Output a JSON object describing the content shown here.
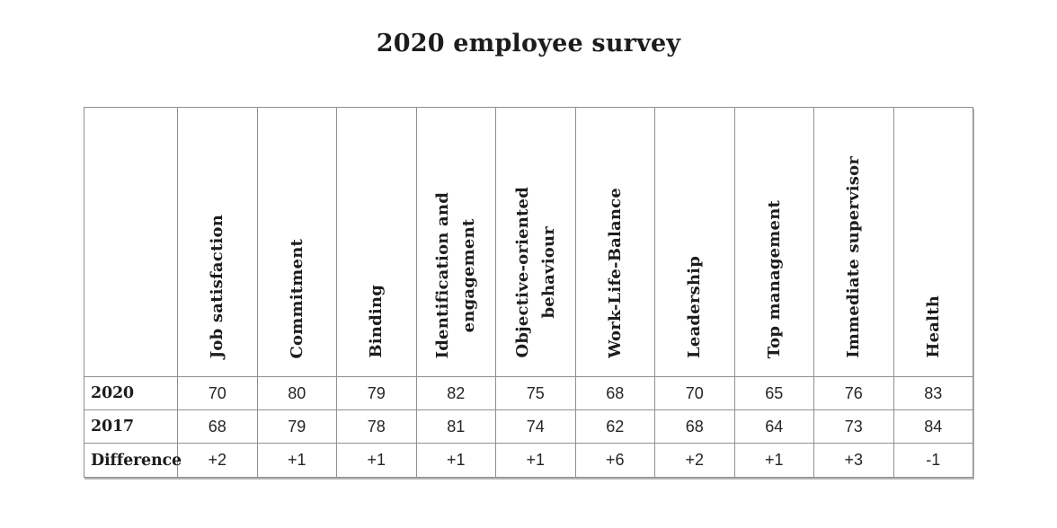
{
  "title": "2020 employee survey",
  "colors": {
    "background": "#ffffff",
    "grid_border": "#8f8f8f",
    "heading_text": "#1d1d1d",
    "value_text": "#262626"
  },
  "table": {
    "columns": [
      "Job satisfaction",
      "Commitment",
      "Binding",
      "Identification and\nengagement",
      "Objective-oriented\nbehaviour",
      "Work-Life-Balance",
      "Leadership",
      "Top management",
      "Immediate supervisor",
      "Health"
    ],
    "rows": [
      {
        "label": "2020",
        "values": [
          "70",
          "80",
          "79",
          "82",
          "75",
          "68",
          "70",
          "65",
          "76",
          "83"
        ]
      },
      {
        "label": "2017",
        "values": [
          "68",
          "79",
          "78",
          "81",
          "74",
          "62",
          "68",
          "64",
          "73",
          "84"
        ]
      },
      {
        "label": "Difference",
        "values": [
          "+2",
          "+1",
          "+1",
          "+1",
          "+1",
          "+6",
          "+2",
          "+1",
          "+3",
          "-1"
        ]
      }
    ]
  },
  "chart_data": {
    "type": "table",
    "title": "2020 employee survey",
    "categories": [
      "Job satisfaction",
      "Commitment",
      "Binding",
      "Identification and engagement",
      "Objective-oriented behaviour",
      "Work-Life-Balance",
      "Leadership",
      "Top management",
      "Immediate supervisor",
      "Health"
    ],
    "series": [
      {
        "name": "2020",
        "values": [
          70,
          80,
          79,
          82,
          75,
          68,
          70,
          65,
          76,
          83
        ]
      },
      {
        "name": "2017",
        "values": [
          68,
          79,
          78,
          81,
          74,
          62,
          68,
          64,
          73,
          84
        ]
      },
      {
        "name": "Difference",
        "values": [
          "+2",
          "+1",
          "+1",
          "+1",
          "+1",
          "+6",
          "+2",
          "+1",
          "+3",
          "-1"
        ]
      }
    ],
    "layout": {
      "header_orientation": "vertical-bottom-to-top",
      "grid": true,
      "legend_position": "none"
    }
  }
}
